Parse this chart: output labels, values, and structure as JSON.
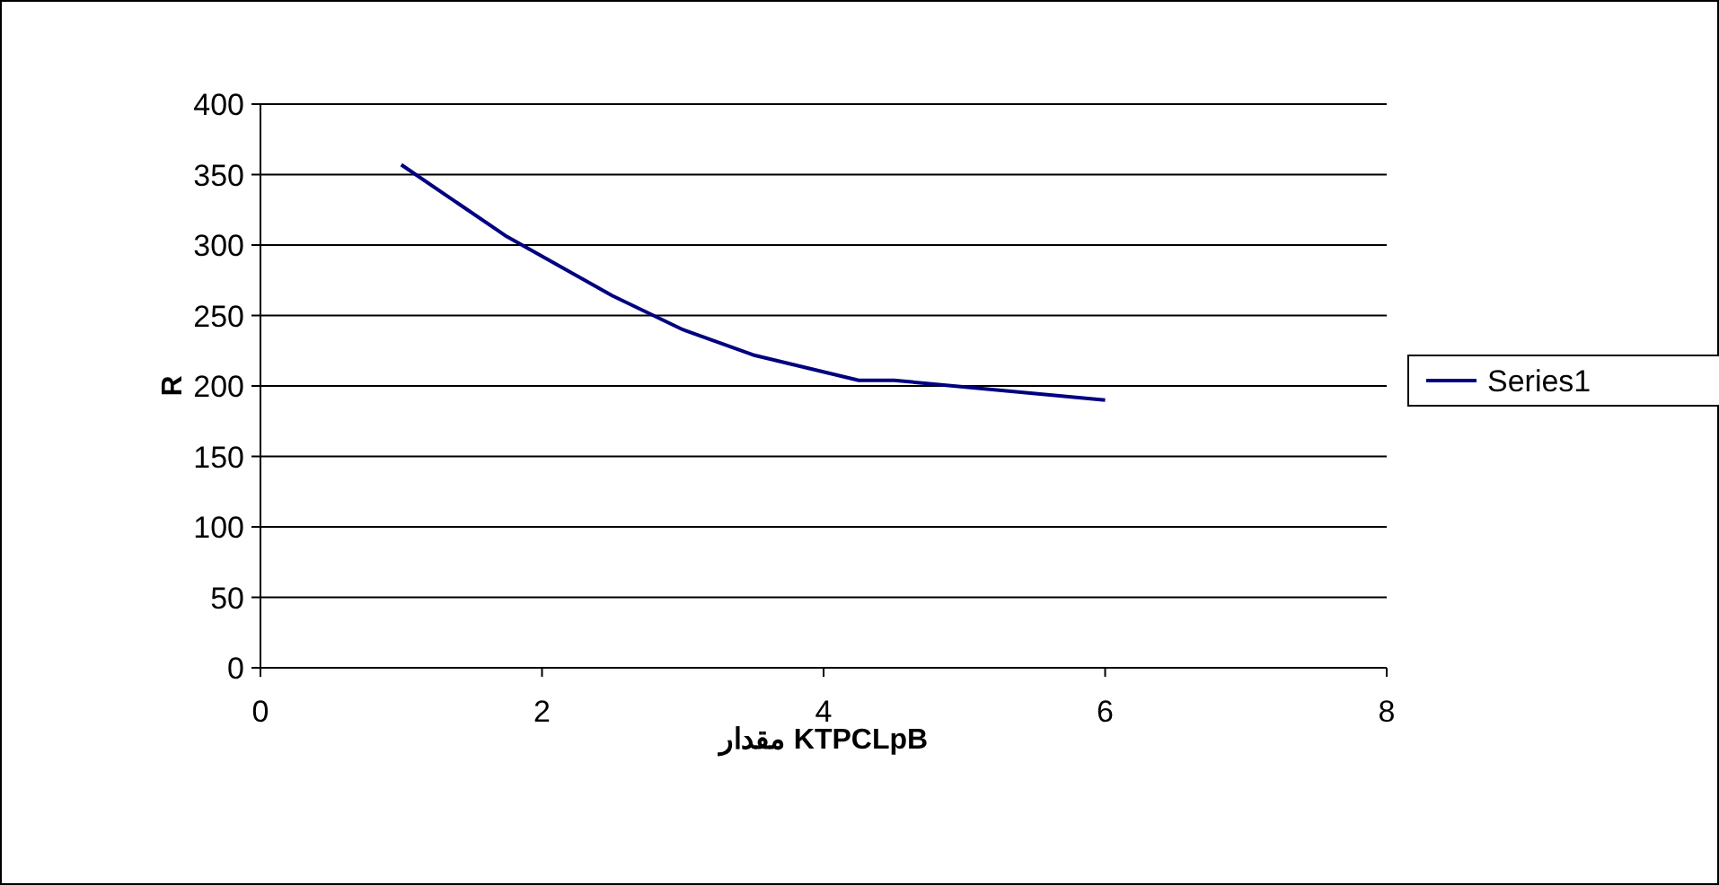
{
  "chart_data": {
    "type": "line",
    "xlabel": "مقدار KTPCLpB",
    "ylabel": "R",
    "x": [
      1,
      1.75,
      2.5,
      3,
      3.5,
      4.25,
      4.5,
      6
    ],
    "series": [
      {
        "name": "Series1",
        "color": "#000080",
        "values": [
          357,
          306,
          264,
          240,
          222,
          204,
          204,
          190
        ]
      }
    ],
    "xlim": [
      0,
      8
    ],
    "xticks": [
      0,
      2,
      4,
      6,
      8
    ],
    "ylim": [
      0,
      400
    ],
    "yticks": [
      0,
      50,
      100,
      150,
      200,
      250,
      300,
      350,
      400
    ],
    "grid": "y",
    "legend": "right",
    "marker": "none",
    "line_style": "solid"
  }
}
